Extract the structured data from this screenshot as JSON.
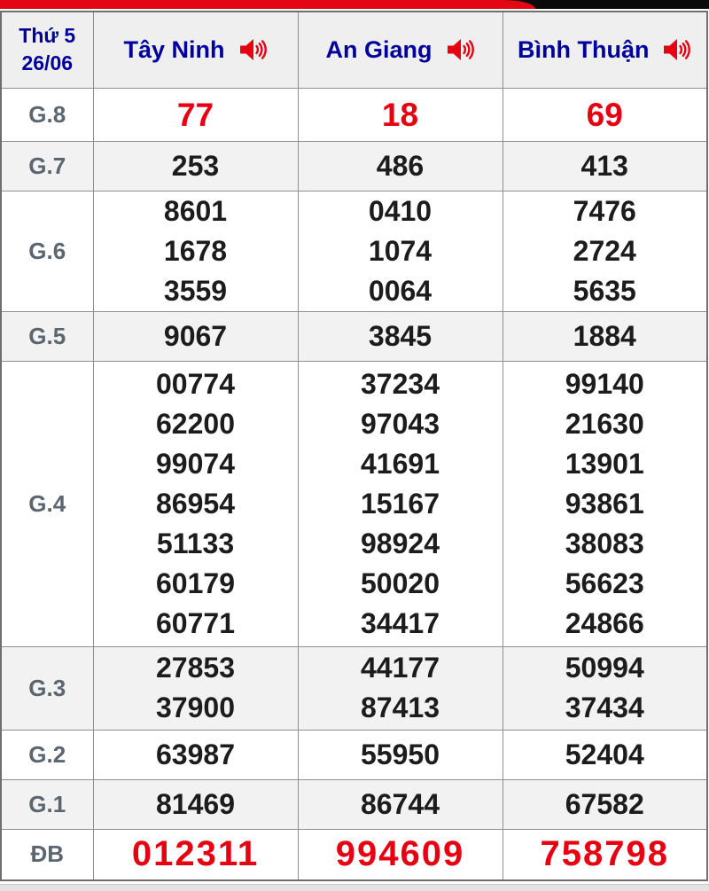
{
  "header": {
    "weekday": "Thứ 5",
    "date": "26/06",
    "columns": [
      {
        "name": "Tây Ninh"
      },
      {
        "name": "An Giang"
      },
      {
        "name": "Bình Thuận"
      }
    ]
  },
  "icons": {
    "speaker": "speaker-icon"
  },
  "colors": {
    "topbar_red": "#e30613",
    "topbar_black": "#0a0a0a",
    "header_text": "#00009c",
    "label_text": "#5c6670",
    "number_text": "#1c1c1c",
    "highlight_red": "#e60012",
    "row_alt_bg": "#f2f2f2",
    "header_bg": "#efefef"
  },
  "prizes": [
    {
      "label": "G.8",
      "highlight": true,
      "values": [
        [
          "77"
        ],
        [
          "18"
        ],
        [
          "69"
        ]
      ]
    },
    {
      "label": "G.7",
      "highlight": false,
      "values": [
        [
          "253"
        ],
        [
          "486"
        ],
        [
          "413"
        ]
      ]
    },
    {
      "label": "G.6",
      "highlight": false,
      "values": [
        [
          "8601",
          "1678",
          "3559"
        ],
        [
          "0410",
          "1074",
          "0064"
        ],
        [
          "7476",
          "2724",
          "5635"
        ]
      ]
    },
    {
      "label": "G.5",
      "highlight": false,
      "values": [
        [
          "9067"
        ],
        [
          "3845"
        ],
        [
          "1884"
        ]
      ]
    },
    {
      "label": "G.4",
      "highlight": false,
      "values": [
        [
          "00774",
          "62200",
          "99074",
          "86954",
          "51133",
          "60179",
          "60771"
        ],
        [
          "37234",
          "97043",
          "41691",
          "15167",
          "98924",
          "50020",
          "34417"
        ],
        [
          "99140",
          "21630",
          "13901",
          "93861",
          "38083",
          "56623",
          "24866"
        ]
      ]
    },
    {
      "label": "G.3",
      "highlight": false,
      "values": [
        [
          "27853",
          "37900"
        ],
        [
          "44177",
          "87413"
        ],
        [
          "50994",
          "37434"
        ]
      ]
    },
    {
      "label": "G.2",
      "highlight": false,
      "values": [
        [
          "63987"
        ],
        [
          "55950"
        ],
        [
          "52404"
        ]
      ]
    },
    {
      "label": "G.1",
      "highlight": false,
      "values": [
        [
          "81469"
        ],
        [
          "86744"
        ],
        [
          "67582"
        ]
      ]
    },
    {
      "label": "ĐB",
      "highlight": true,
      "values": [
        [
          "012311"
        ],
        [
          "994609"
        ],
        [
          "758798"
        ]
      ]
    }
  ]
}
